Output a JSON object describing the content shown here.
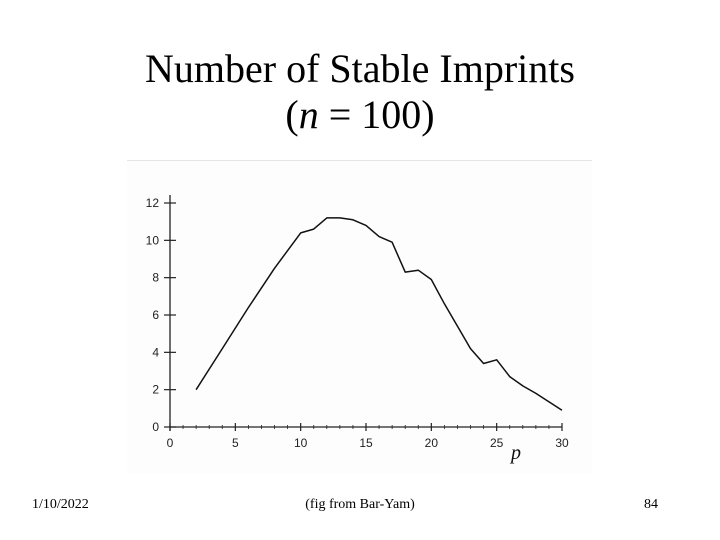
{
  "slide": {
    "title_line1": "Number of Stable Imprints",
    "title_line2_open": "(",
    "title_line2_var": "n",
    "title_line2_rest": " = 100)",
    "date": "1/10/2022",
    "source": "(fig from Bar-Yam)",
    "page_number": "84"
  },
  "chart_data": {
    "type": "line",
    "title": "",
    "xlabel": "p",
    "ylabel": "",
    "xlim": [
      0,
      30
    ],
    "ylim": [
      0,
      12
    ],
    "xticks": [
      0,
      5,
      10,
      15,
      20,
      25,
      30
    ],
    "xtick_labels": [
      "0",
      "5",
      "10",
      "15",
      "20",
      "25",
      "30"
    ],
    "yticks": [
      0,
      2,
      4,
      6,
      8,
      10,
      12
    ],
    "ytick_labels": [
      "0",
      "2",
      "4",
      "6",
      "8",
      "10",
      "12"
    ],
    "grid": false,
    "series": [
      {
        "x": [
          2,
          4,
          6,
          8,
          10,
          11,
          12,
          13,
          14,
          15,
          16,
          17,
          18,
          19,
          20,
          21,
          22,
          23,
          24,
          25,
          26,
          27,
          28,
          30
        ],
        "y": [
          2.0,
          4.2,
          6.4,
          8.5,
          10.4,
          10.6,
          11.2,
          11.2,
          11.1,
          10.8,
          10.2,
          9.9,
          8.3,
          8.4,
          7.9,
          6.6,
          5.4,
          4.2,
          3.4,
          3.6,
          2.7,
          2.2,
          1.8,
          0.9
        ]
      }
    ],
    "colors": {
      "line": "#111111",
      "axis": "#222222"
    }
  }
}
